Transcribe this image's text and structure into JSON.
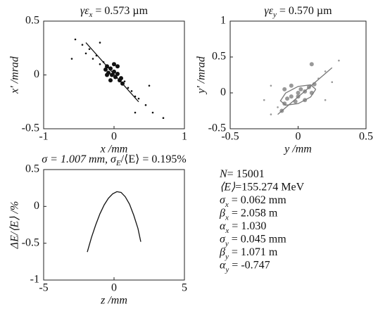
{
  "chart_data": [
    {
      "type": "scatter",
      "title": "γε",
      "title_sub": "x",
      "title_rest": " = 0.573 µm",
      "x_label": "x /mm",
      "y_label": "x′ /mrad",
      "xlim": [
        -1,
        1
      ],
      "ylim": [
        -0.5,
        0.5
      ],
      "xticks": [
        -1,
        0,
        1
      ],
      "yticks": [
        -0.5,
        0,
        0.5
      ],
      "series": [
        {
          "type": "scatter",
          "color": "#111111",
          "x": [
            -0.55,
            -0.45,
            -0.4,
            -0.35,
            -0.3,
            -0.25,
            -0.2,
            -0.15,
            -0.12,
            -0.1,
            -0.08,
            -0.05,
            -0.03,
            0,
            0.02,
            0.05,
            0.08,
            0.1,
            0.12,
            0.15,
            0.2,
            0.25,
            0.3,
            0.35,
            0.45,
            0.55,
            0.7,
            -0.6,
            0.5,
            -0.2,
            0.3,
            -0.05,
            0.05,
            -0.1,
            0.0
          ],
          "y": [
            0.33,
            0.28,
            0.2,
            0.24,
            0.15,
            0.18,
            0.1,
            0.12,
            0.05,
            0.08,
            0.02,
            0.06,
            0.0,
            0.03,
            -0.02,
            0.01,
            -0.05,
            -0.03,
            -0.08,
            -0.06,
            -0.12,
            -0.15,
            -0.2,
            -0.22,
            -0.28,
            -0.35,
            -0.4,
            0.15,
            -0.1,
            0.3,
            -0.35,
            -0.05,
            0.08,
            0.0,
            0.1
          ]
        },
        {
          "type": "line",
          "color": "#111111",
          "x": [
            -0.4,
            0.35
          ],
          "y": [
            0.3,
            -0.25
          ]
        }
      ]
    },
    {
      "type": "scatter",
      "title": "γε",
      "title_sub": "y",
      "title_rest": " = 0.570 µm",
      "x_label": "y /mm",
      "y_label": "y′ /mrad",
      "xlim": [
        -0.5,
        0.5
      ],
      "ylim": [
        -0.5,
        1
      ],
      "xticks": [
        -0.5,
        0,
        0.5
      ],
      "yticks": [
        -0.5,
        0,
        0.5,
        1
      ],
      "series": [
        {
          "type": "scatter",
          "color": "#999999",
          "x": [
            -0.2,
            -0.15,
            -0.1,
            -0.1,
            -0.08,
            -0.05,
            -0.05,
            -0.02,
            0,
            0,
            0.02,
            0.05,
            0.05,
            0.08,
            0.1,
            0.12,
            0.15,
            0.2,
            0.1,
            -0.2,
            0.2,
            -0.25,
            0.3,
            0.25,
            -0.12
          ],
          "y": [
            -0.3,
            -0.2,
            -0.15,
            0.05,
            -0.08,
            -0.05,
            0.1,
            -0.12,
            0,
            -0.05,
            0.05,
            0.02,
            -0.1,
            0.08,
            0.0,
            0.12,
            0.2,
            0.3,
            0.4,
            0.1,
            -0.1,
            -0.1,
            0.45,
            0.15,
            -0.25
          ]
        },
        {
          "type": "line",
          "color": "#777777",
          "x": [
            -0.15,
            0.25
          ],
          "y": [
            -0.3,
            0.35
          ]
        },
        {
          "type": "line",
          "color": "#777777",
          "x": [
            0.13,
            0.092,
            0,
            -0.092,
            -0.13,
            -0.092,
            0,
            0.092,
            0.13
          ],
          "y": [
            0.05,
            0.112,
            0.09,
            -0.002,
            -0.11,
            -0.172,
            -0.15,
            -0.058,
            0.05
          ]
        }
      ]
    },
    {
      "type": "scatter",
      "title": "σ = 1.007 mm, σ",
      "title_sub": "E",
      "title_rest": "/⟨E⟩ = 0.195%",
      "x_label": "z /mm",
      "y_label": "ΔE/⟨E⟩ /%",
      "xlim": [
        -5,
        5
      ],
      "ylim": [
        -1,
        0.5
      ],
      "xticks": [
        -5,
        0,
        5
      ],
      "yticks": [
        -1,
        -0.5,
        0,
        0.5
      ],
      "series": [
        {
          "type": "line",
          "color": "#111111",
          "x": [
            -1.9,
            -1.6,
            -1.3,
            -1,
            -0.7,
            -0.4,
            -0.1,
            0.2,
            0.5,
            0.8,
            1.1,
            1.4,
            1.7,
            1.9
          ],
          "y": [
            -0.62,
            -0.42,
            -0.25,
            -0.1,
            0.02,
            0.11,
            0.17,
            0.2,
            0.19,
            0.13,
            0.03,
            -0.12,
            -0.3,
            -0.48
          ]
        }
      ]
    }
  ],
  "parameters": [
    {
      "symbol": "N",
      "text": "=  15001"
    },
    {
      "symbol": "⟨E⟩",
      "text": "=155.274 MeV"
    },
    {
      "symbol": "σ",
      "sub": "x",
      "text": " = 0.062 mm"
    },
    {
      "symbol": "β",
      "sub": "x",
      "text": " = 2.058 m"
    },
    {
      "symbol": "α",
      "sub": "x",
      "text": " = 1.030"
    },
    {
      "symbol": "σ",
      "sub": "y",
      "text": " = 0.045 mm"
    },
    {
      "symbol": "β",
      "sub": "y",
      "text": " = 1.071 m"
    },
    {
      "symbol": "α",
      "sub": "y",
      "text": " = -0.747"
    }
  ]
}
